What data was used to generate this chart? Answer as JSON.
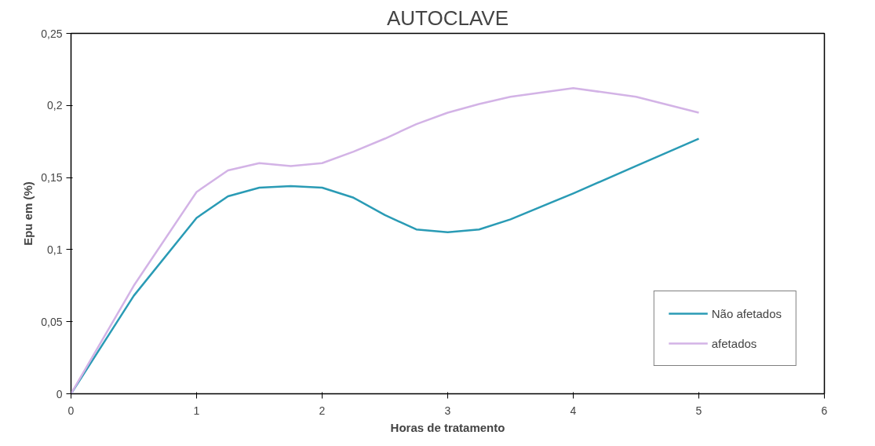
{
  "chart_data": {
    "type": "line",
    "title": "AUTOCLAVE",
    "xlabel": "Horas de tratamento",
    "ylabel": "Epu em (%)",
    "xlim": [
      0,
      6
    ],
    "xticks": [
      0,
      1,
      2,
      3,
      4,
      5,
      6
    ],
    "ylim": [
      0,
      0.25
    ],
    "yticks": [
      {
        "value": 0,
        "label": "0"
      },
      {
        "value": 0.05,
        "label": "0,05"
      },
      {
        "value": 0.1,
        "label": "0,1"
      },
      {
        "value": 0.15,
        "label": "0,15"
      },
      {
        "value": 0.2,
        "label": "0,2"
      },
      {
        "value": 0.25,
        "label": "0,25"
      }
    ],
    "x": [
      0,
      0.5,
      1,
      1.25,
      1.5,
      1.75,
      2,
      2.25,
      2.5,
      2.75,
      3,
      3.25,
      3.5,
      4,
      4.5,
      5
    ],
    "series": [
      {
        "name": "Não afetados",
        "color": "#2a9bb5",
        "values": [
          0,
          0.068,
          0.122,
          0.137,
          0.143,
          0.144,
          0.143,
          0.136,
          0.124,
          0.114,
          0.112,
          0.114,
          0.121,
          0.139,
          0.158,
          0.177
        ]
      },
      {
        "name": "afetados",
        "color": "#d3b3e6",
        "values": [
          0,
          0.075,
          0.14,
          0.155,
          0.16,
          0.158,
          0.16,
          0.168,
          0.177,
          0.187,
          0.195,
          0.201,
          0.206,
          0.212,
          0.206,
          0.195
        ]
      }
    ],
    "grid": false,
    "legend": "bottom right",
    "marker": "none",
    "line_style": "solid"
  }
}
